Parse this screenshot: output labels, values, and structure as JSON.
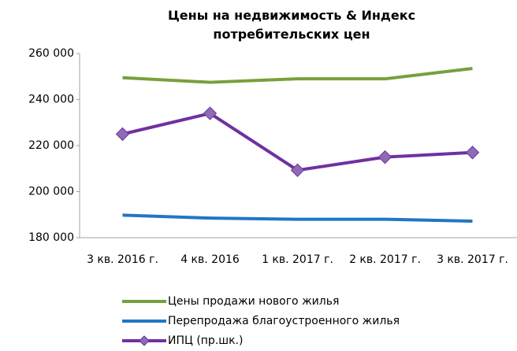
{
  "chart_data": {
    "type": "line",
    "title": "Цены на недвижимость & Индекс потребительских цен",
    "categories": [
      "3 кв. 2016 г.",
      "4 кв. 2016",
      "1 кв. 2017 г.",
      "2 кв. 2017 г.",
      "3 кв. 2017 г."
    ],
    "series": [
      {
        "name": "Цены продажи нового жилья",
        "color": "#77a03c",
        "values": [
          249500,
          247500,
          249000,
          249000,
          253500
        ]
      },
      {
        "name": "Перепродажа благоустроенного жилья",
        "color": "#1f77c4",
        "values": [
          189800,
          188500,
          188000,
          188000,
          187200
        ]
      },
      {
        "name": "ИПЦ (пр.шк.)",
        "color": "#7030a0",
        "marker": "diamond",
        "values": [
          225000,
          234000,
          209300,
          215000,
          217000
        ]
      }
    ],
    "ylim": [
      180000,
      260000
    ],
    "yticks": [
      {
        "value": 180000,
        "label": "180 000"
      },
      {
        "value": 200000,
        "label": "200 000"
      },
      {
        "value": 220000,
        "label": "220 000"
      },
      {
        "value": 240000,
        "label": "240 000"
      },
      {
        "value": 260000,
        "label": "260 000"
      }
    ],
    "grid": false,
    "legend": "bottom"
  }
}
